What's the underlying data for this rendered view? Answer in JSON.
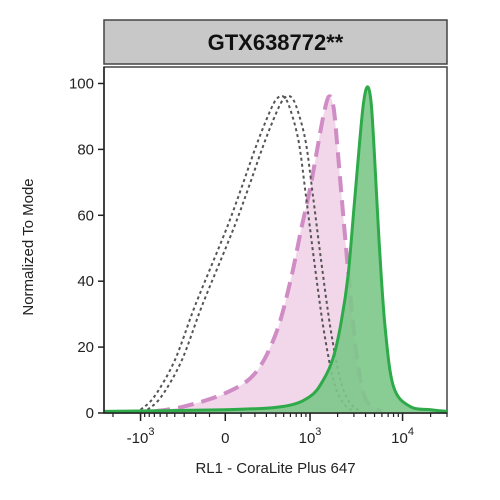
{
  "chart_data": {
    "type": "area",
    "title": "GTX638772**",
    "xlabel": "RL1 - CoraLite Plus 647",
    "ylabel": "Normalized To Mode",
    "x_scale": "biexponential",
    "xlim": [
      -2500,
      30000
    ],
    "ylim": [
      0,
      105
    ],
    "yticks": [
      0,
      20,
      40,
      60,
      80,
      100
    ],
    "ytick_labels": [
      "0",
      "20",
      "40",
      "60",
      "80",
      "100"
    ],
    "xticks": [
      {
        "value": -1000,
        "base": "-10",
        "exp": "3"
      },
      {
        "value": 0,
        "base": "0",
        "exp": ""
      },
      {
        "value": 1000,
        "base": "10",
        "exp": "3"
      },
      {
        "value": 10000,
        "base": "10",
        "exp": "4"
      }
    ],
    "grid": false,
    "legend": "none",
    "series": [
      {
        "style": "dotted-outline",
        "colors": {
          "stroke": "#555555",
          "fill": "none"
        },
        "x": [
          -1000,
          -700,
          -400,
          -200,
          0,
          100,
          200,
          300,
          400,
          500,
          600,
          750,
          900,
          1100,
          1400,
          1800,
          2300,
          3000
        ],
        "y": [
          1,
          5,
          16,
          33,
          55,
          68,
          80,
          89,
          95,
          96,
          92,
          82,
          66,
          47,
          26,
          10,
          3,
          0.5
        ]
      },
      {
        "style": "dashed-filled",
        "colors": {
          "stroke": "#d08cc4",
          "fill": "#f0cfe6"
        },
        "x": [
          -700,
          -300,
          0,
          200,
          400,
          600,
          800,
          1000,
          1200,
          1400,
          1600,
          1800,
          2000,
          2300,
          2700,
          3200,
          3800,
          4600,
          6000
        ],
        "y": [
          0.5,
          2,
          6,
          12,
          24,
          40,
          56,
          68,
          80,
          90,
          96,
          93,
          80,
          60,
          38,
          18,
          6,
          2,
          0.5
        ]
      },
      {
        "style": "solid-filled",
        "colors": {
          "stroke": "#2eaa4a",
          "fill": "#7cc88a"
        },
        "x": [
          -2500,
          0,
          500,
          1000,
          1400,
          1800,
          2200,
          2600,
          3000,
          3400,
          3800,
          4200,
          4600,
          5000,
          5600,
          6500,
          8000,
          12000,
          20000,
          30000
        ],
        "y": [
          0.5,
          1,
          2,
          5,
          10,
          17,
          28,
          42,
          62,
          80,
          94,
          99,
          94,
          78,
          52,
          26,
          8,
          2,
          1,
          0.5
        ]
      }
    ]
  }
}
